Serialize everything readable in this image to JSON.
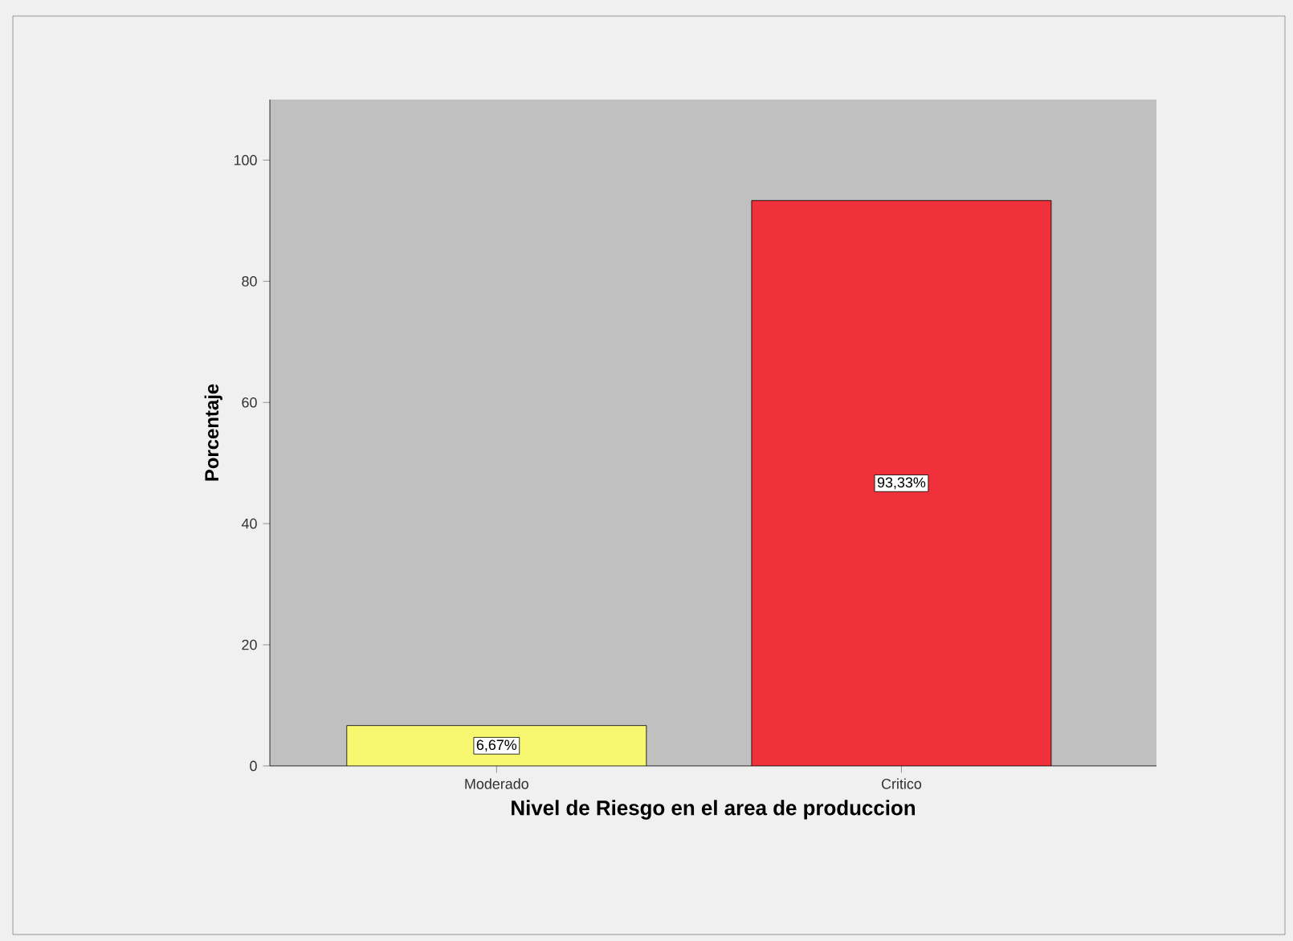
{
  "chart_data": {
    "type": "bar",
    "categories": [
      "Moderado",
      "Critico"
    ],
    "values": [
      6.67,
      93.33
    ],
    "colors": [
      "#f8f870",
      "#f0303a"
    ],
    "value_labels": [
      "6,67%",
      "93,33%"
    ],
    "xlabel": "Nivel de Riesgo en el area de produccion",
    "ylabel": "Porcentaje",
    "ylim": [
      0,
      110
    ],
    "yticks": [
      0,
      20,
      40,
      60,
      80,
      100
    ]
  }
}
